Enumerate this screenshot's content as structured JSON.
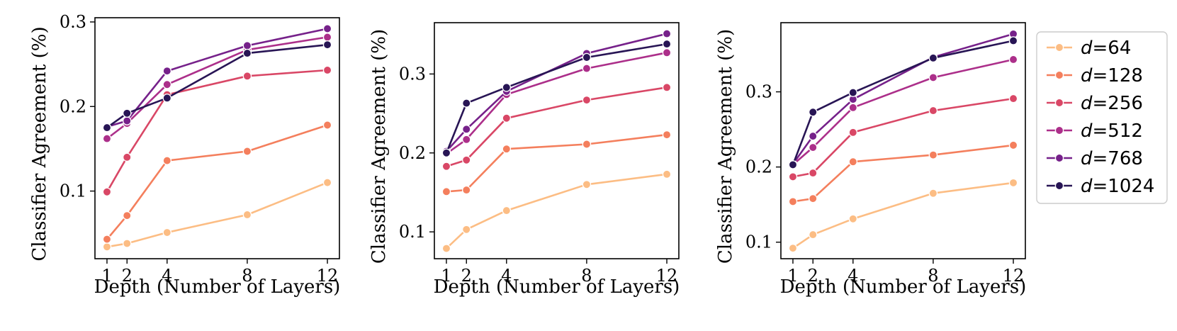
{
  "legend": {
    "placement": "right",
    "entries": [
      {
        "var": "d",
        "text": "=64",
        "color": "#fcbd84"
      },
      {
        "var": "d",
        "text": "=128",
        "color": "#f47f5d"
      },
      {
        "var": "d",
        "text": "=256",
        "color": "#d94766"
      },
      {
        "var": "d",
        "text": "=512",
        "color": "#ac2f8a"
      },
      {
        "var": "d",
        "text": "=768",
        "color": "#76218a"
      },
      {
        "var": "d",
        "text": "=1024",
        "color": "#281555"
      }
    ]
  },
  "chart_data": [
    {
      "type": "line",
      "xlabel": "Depth (Number of Layers)",
      "ylabel": "Classifier Agreement (%)",
      "x": [
        1,
        2,
        4,
        8,
        12
      ],
      "xticks": [
        1,
        2,
        4,
        8,
        12
      ],
      "xlim": [
        0.4,
        12.6
      ],
      "yticks": [
        0.1,
        0.2,
        0.3
      ],
      "ytick_labels": [
        "0.1",
        "0.2",
        "0.3"
      ],
      "ylim": [
        0.02,
        0.305
      ],
      "grid": false,
      "series": [
        {
          "name": "d=64",
          "values": [
            0.034,
            0.038,
            0.051,
            0.072,
            0.11
          ]
        },
        {
          "name": "d=128",
          "values": [
            0.043,
            0.071,
            0.136,
            0.147,
            0.178
          ]
        },
        {
          "name": "d=256",
          "values": [
            0.099,
            0.14,
            0.214,
            0.236,
            0.243
          ]
        },
        {
          "name": "d=512",
          "values": [
            0.162,
            0.18,
            0.226,
            0.267,
            0.282
          ]
        },
        {
          "name": "d=768",
          "values": [
            0.176,
            0.183,
            0.242,
            0.272,
            0.292
          ]
        },
        {
          "name": "d=1024",
          "values": [
            0.175,
            0.192,
            0.21,
            0.263,
            0.273
          ]
        }
      ]
    },
    {
      "type": "line",
      "xlabel": "Depth (Number of Layers)",
      "ylabel": "Classifier Agreement (%)",
      "x": [
        1,
        2,
        4,
        8,
        12
      ],
      "xticks": [
        1,
        2,
        4,
        8,
        12
      ],
      "xlim": [
        0.4,
        12.6
      ],
      "yticks": [
        0.1,
        0.2,
        0.3
      ],
      "ytick_labels": [
        "0.1",
        "0.2",
        "0.3"
      ],
      "ylim": [
        0.066,
        0.365
      ],
      "grid": false,
      "series": [
        {
          "name": "d=64",
          "values": [
            0.079,
            0.103,
            0.127,
            0.16,
            0.173
          ]
        },
        {
          "name": "d=128",
          "values": [
            0.151,
            0.153,
            0.205,
            0.211,
            0.223
          ]
        },
        {
          "name": "d=256",
          "values": [
            0.183,
            0.191,
            0.244,
            0.267,
            0.283
          ]
        },
        {
          "name": "d=512",
          "values": [
            0.199,
            0.217,
            0.274,
            0.307,
            0.327
          ]
        },
        {
          "name": "d=768",
          "values": [
            0.202,
            0.23,
            0.278,
            0.326,
            0.351
          ]
        },
        {
          "name": "d=1024",
          "values": [
            0.2,
            0.263,
            0.283,
            0.321,
            0.338
          ]
        }
      ]
    },
    {
      "type": "line",
      "xlabel": "Depth (Number of Layers)",
      "ylabel": "Classifier Agreement (%)",
      "x": [
        1,
        2,
        4,
        8,
        12
      ],
      "xticks": [
        1,
        2,
        4,
        8,
        12
      ],
      "xlim": [
        0.4,
        12.6
      ],
      "yticks": [
        0.1,
        0.2,
        0.3
      ],
      "ytick_labels": [
        "0.1",
        "0.2",
        "0.3"
      ],
      "ylim": [
        0.078,
        0.392
      ],
      "grid": false,
      "series": [
        {
          "name": "d=64",
          "values": [
            0.092,
            0.11,
            0.131,
            0.165,
            0.179
          ]
        },
        {
          "name": "d=128",
          "values": [
            0.154,
            0.158,
            0.207,
            0.216,
            0.229
          ]
        },
        {
          "name": "d=256",
          "values": [
            0.187,
            0.192,
            0.246,
            0.275,
            0.291
          ]
        },
        {
          "name": "d=512",
          "values": [
            0.203,
            0.226,
            0.279,
            0.319,
            0.343
          ]
        },
        {
          "name": "d=768",
          "values": [
            0.204,
            0.241,
            0.29,
            0.346,
            0.377
          ]
        },
        {
          "name": "d=1024",
          "values": [
            0.203,
            0.273,
            0.299,
            0.345,
            0.368
          ]
        }
      ]
    }
  ]
}
